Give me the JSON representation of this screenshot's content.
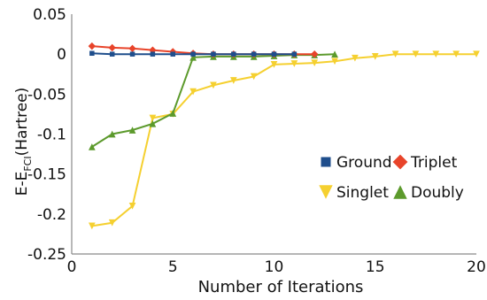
{
  "chart_data": {
    "type": "line",
    "title": "",
    "xlabel": "Number of Iterations",
    "ylabel_prefix": "E-E",
    "ylabel_sub": "FCI",
    "ylabel_suffix": "(Hartree)",
    "xlim": [
      0,
      20
    ],
    "ylim": [
      -0.25,
      0.05
    ],
    "x_ticks": [
      0,
      5,
      10,
      15,
      20
    ],
    "y_ticks": [
      0.05,
      0,
      -0.05,
      -0.1,
      -0.15,
      -0.2,
      -0.25
    ],
    "x_tick_labels": [
      "0",
      "5",
      "10",
      "15",
      "20"
    ],
    "y_tick_labels": [
      "0.05",
      "0",
      "-0.05",
      "-0.1",
      "-0.15",
      "-0.2",
      "-0.25"
    ],
    "grid": false,
    "legend_position": "right, inside plot",
    "series": [
      {
        "name": "Ground",
        "color": "#1f4e8c",
        "marker": "square",
        "x": [
          1,
          2,
          3,
          4,
          5,
          6,
          7,
          8,
          9,
          10,
          11
        ],
        "y": [
          0.001,
          0.0,
          0.0,
          0.0,
          0.0,
          0.0,
          0.0,
          0.0,
          0.0,
          0.0,
          0.0
        ]
      },
      {
        "name": "Triplet",
        "color": "#e8442a",
        "marker": "diamond",
        "x": [
          1,
          2,
          3,
          4,
          5,
          6,
          7,
          8,
          9,
          10,
          11,
          12
        ],
        "y": [
          0.01,
          0.008,
          0.007,
          0.005,
          0.003,
          0.001,
          0.0,
          0.0,
          0.0,
          0.0,
          0.0,
          0.0
        ]
      },
      {
        "name": "Singlet",
        "color": "#f5d030",
        "marker": "triangle-down",
        "x": [
          1,
          2,
          3,
          4,
          5,
          6,
          7,
          8,
          9,
          10,
          11,
          12,
          13,
          14,
          15,
          16,
          17,
          18,
          19,
          20
        ],
        "y": [
          -0.215,
          -0.211,
          -0.19,
          -0.08,
          -0.075,
          -0.047,
          -0.039,
          -0.033,
          -0.028,
          -0.013,
          -0.012,
          -0.011,
          -0.009,
          -0.005,
          -0.003,
          0.0,
          0.0,
          0.0,
          0.0,
          0.0
        ]
      },
      {
        "name": "Doubly",
        "color": "#5c9a2c",
        "marker": "triangle-up",
        "x": [
          1,
          2,
          3,
          4,
          5,
          6,
          7,
          8,
          9,
          10,
          11,
          12,
          13
        ],
        "y": [
          -0.116,
          -0.1,
          -0.095,
          -0.087,
          -0.074,
          -0.004,
          -0.003,
          -0.003,
          -0.003,
          -0.002,
          -0.001,
          -0.001,
          0.0
        ]
      }
    ]
  }
}
